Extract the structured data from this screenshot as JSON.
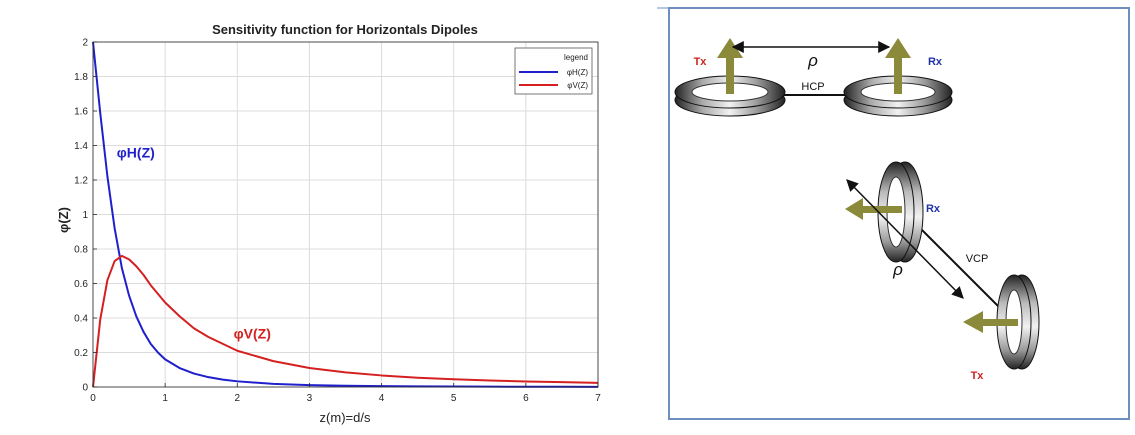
{
  "chart_data": {
    "type": "line",
    "title": "Sensitivity function for Horizontals Dipoles",
    "xlabel": "z(m)=d/s",
    "ylabel": "φ(Z)",
    "xlim": [
      0,
      7
    ],
    "ylim": [
      0,
      2
    ],
    "x_ticks": [
      "0",
      "1",
      "2",
      "3",
      "4",
      "5",
      "6",
      "7"
    ],
    "y_ticks": [
      "0",
      "0.2",
      "0.4",
      "0.6",
      "0.8",
      "1",
      "1.2",
      "1.4",
      "1.6",
      "1.8",
      "2"
    ],
    "grid": true,
    "legend": {
      "title": "legend",
      "position": "top-right",
      "entries": [
        "φH(Z)",
        "φV(Z)"
      ]
    },
    "x": [
      0,
      0.1,
      0.2,
      0.3,
      0.4,
      0.5,
      0.6,
      0.7,
      0.8,
      0.9,
      1.0,
      1.2,
      1.4,
      1.6,
      1.8,
      2.0,
      2.5,
      3.0,
      3.5,
      4.0,
      4.5,
      5.0,
      5.5,
      6.0,
      6.5,
      7.0
    ],
    "series": [
      {
        "name": "φH(Z)",
        "color": "#1f1fcc",
        "values": [
          2.0,
          1.59,
          1.22,
          0.92,
          0.69,
          0.53,
          0.41,
          0.32,
          0.25,
          0.2,
          0.16,
          0.11,
          0.078,
          0.057,
          0.043,
          0.033,
          0.018,
          0.011,
          0.0072,
          0.0049,
          0.0035,
          0.0026,
          0.0019,
          0.0015,
          0.0012,
          0.001
        ]
      },
      {
        "name": "φV(Z)",
        "color": "#d42020",
        "values": [
          0.0,
          0.39,
          0.62,
          0.73,
          0.76,
          0.74,
          0.7,
          0.65,
          0.59,
          0.54,
          0.49,
          0.41,
          0.34,
          0.29,
          0.25,
          0.21,
          0.15,
          0.11,
          0.085,
          0.067,
          0.054,
          0.045,
          0.038,
          0.032,
          0.028,
          0.024
        ]
      }
    ],
    "annotations": [
      {
        "text": "φH(Z)",
        "x": 0.33,
        "y": 1.33,
        "color": "#1f1fcc"
      },
      {
        "text": "φV(Z)",
        "x": 1.95,
        "y": 0.28,
        "color": "#d42020"
      }
    ]
  },
  "diagram": {
    "top": {
      "tx_label": "Tx",
      "rx_label": "Rx",
      "rho_label": "ρ",
      "mode_label": "HCP"
    },
    "bottom": {
      "tx_label": "Tx",
      "rx_label": "Rx",
      "rho_label": "ρ",
      "mode_label": "VCP"
    },
    "colors": {
      "tx": "#cc2222",
      "rx": "#2233aa",
      "frame": "#6f8ec0",
      "arrow": "#8a8a3a"
    }
  }
}
